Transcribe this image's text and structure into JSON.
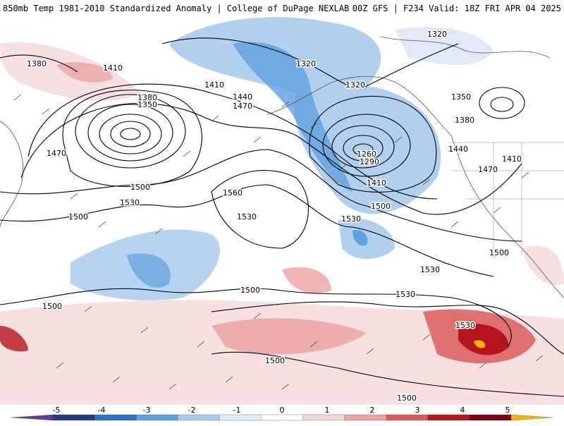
{
  "header": {
    "title_left": "850mb Temp 1981-2010 Standardized Anomaly | College of DuPage NEXLAB",
    "title_right": "00Z GFS | F234 Valid: 18Z FRI APR 04 2025"
  },
  "contour_labels": [
    "1380",
    "1410",
    "1380",
    "1350",
    "1470",
    "1410",
    "1440",
    "1470",
    "1320",
    "1320",
    "1320",
    "1350",
    "1380",
    "1260",
    "1290",
    "1440",
    "1410",
    "1470",
    "1410",
    "1500",
    "1530",
    "1560",
    "1500",
    "1530",
    "1500",
    "1500",
    "1530",
    "1500",
    "1530",
    "1500",
    "1530",
    "1500",
    "1500"
  ],
  "colorbar": {
    "ticks": [
      "-5",
      "-4",
      "-3",
      "-2",
      "-1",
      "0",
      "1",
      "2",
      "3",
      "4",
      "5"
    ],
    "colors": [
      "#5b3c9c",
      "#1f3f7a",
      "#2f73c4",
      "#5fa0de",
      "#a9cbee",
      "#dfeaf6",
      "#ffffff",
      "#f3d6d6",
      "#eba3a3",
      "#d95c5c",
      "#b8141e",
      "#7d0010",
      "#f4b400"
    ]
  },
  "map": {
    "ocean_color": "#ffffff",
    "anomaly_cold": [
      "#dfeaf6",
      "#a9cbee",
      "#5fa0de",
      "#2f73c4"
    ],
    "anomaly_warm": [
      "#f6e0e0",
      "#eba3a3",
      "#d95c5c",
      "#b8141e",
      "#7d0010"
    ]
  }
}
